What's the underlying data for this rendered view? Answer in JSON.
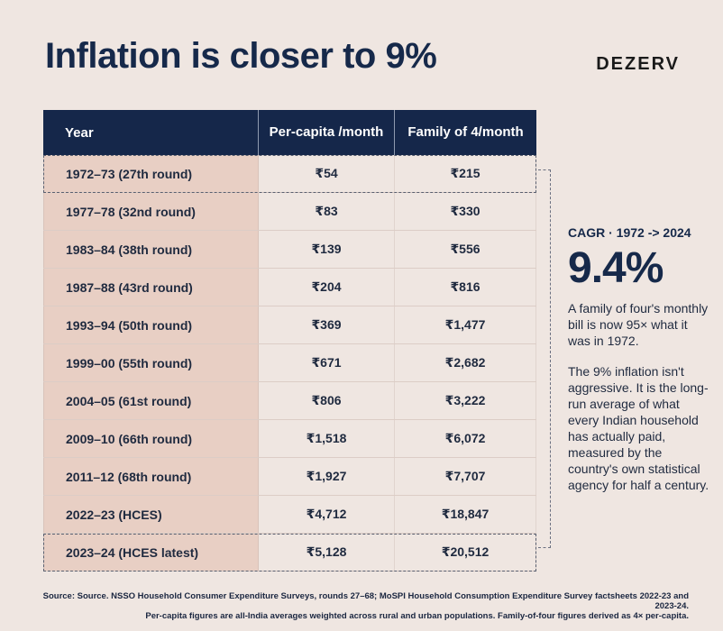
{
  "title": "Inflation is closer to 9%",
  "brand": "DEZERV",
  "table": {
    "headers": {
      "year": "Year",
      "per_capita": "Per-capita /month",
      "family": "Family of 4/month"
    },
    "rows": [
      {
        "year": "1972–73 (27th round)",
        "per_capita": "₹54",
        "family": "₹215"
      },
      {
        "year": "1977–78 (32nd round)",
        "per_capita": "₹83",
        "family": "₹330"
      },
      {
        "year": "1983–84 (38th round)",
        "per_capita": "₹139",
        "family": "₹556"
      },
      {
        "year": "1987–88 (43rd round)",
        "per_capita": "₹204",
        "family": "₹816"
      },
      {
        "year": "1993–94 (50th round)",
        "per_capita": "₹369",
        "family": "₹1,477"
      },
      {
        "year": "1999–00 (55th round)",
        "per_capita": "₹671",
        "family": "₹2,682"
      },
      {
        "year": "2004–05 (61st round)",
        "per_capita": "₹806",
        "family": "₹3,222"
      },
      {
        "year": "2009–10 (66th round)",
        "per_capita": "₹1,518",
        "family": "₹6,072"
      },
      {
        "year": "2011–12 (68th round)",
        "per_capita": "₹1,927",
        "family": "₹7,707"
      },
      {
        "year": "2022–23 (HCES)",
        "per_capita": "₹4,712",
        "family": "₹18,847"
      },
      {
        "year": "2023–24 (HCES latest)",
        "per_capita": "₹5,128",
        "family": "₹20,512"
      }
    ]
  },
  "side": {
    "cagr_label": "CAGR · 1972 -> 2024",
    "cagr_value": "9.4%",
    "note1": "A family of four's monthly bill is now 95× what it was in 1972.",
    "note2": "The 9% inflation isn't aggressive. It is the long-run average of what every Indian household has actually paid, measured by the country's own statistical agency for half a century."
  },
  "footer": {
    "line1": "Source: Source. NSSO Household Consumer Expenditure Surveys, rounds 27–68; MoSPI Household Consumption Expenditure Survey factsheets 2022-23 and 2023-24.",
    "line2": "Per-capita figures are all-India averages weighted across rural and urban populations. Family-of-four figures derived as 4× per-capita."
  },
  "colors": {
    "background": "#efe6e1",
    "header": "#15274a",
    "year_column": "#e8cfc4",
    "title": "#16294a"
  }
}
